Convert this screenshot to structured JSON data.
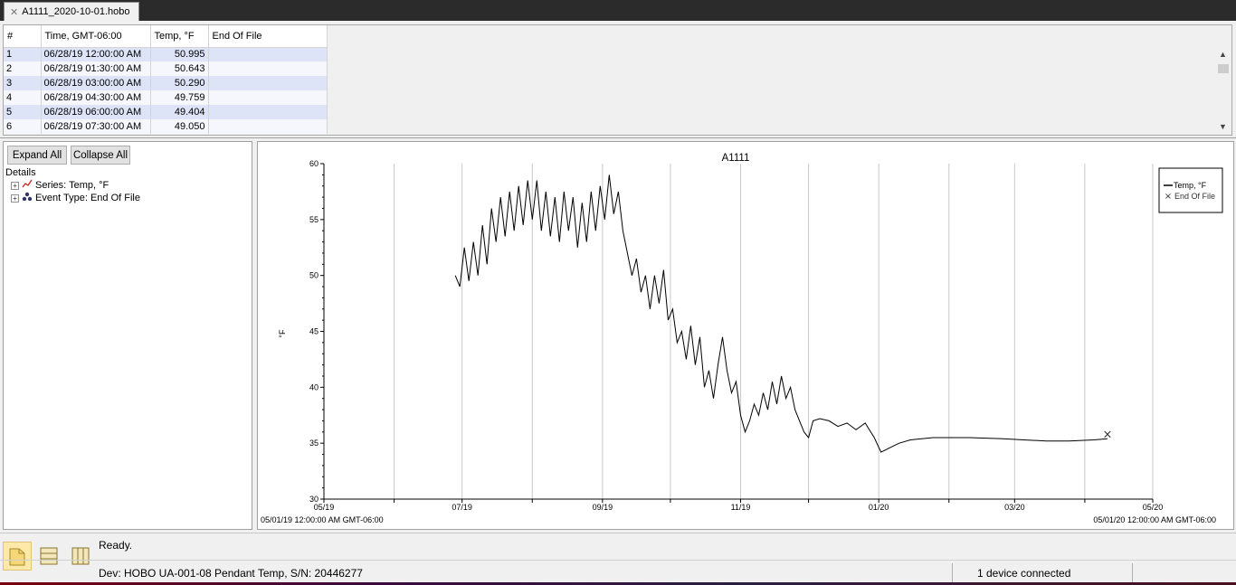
{
  "tab": {
    "title": "A1111_2020-10-01.hobo"
  },
  "table": {
    "columns": [
      "#",
      "Time, GMT-06:00",
      "Temp, °F",
      "End Of File"
    ],
    "rows": [
      [
        "1",
        "06/28/19 12:00:00 AM",
        "50.995",
        ""
      ],
      [
        "2",
        "06/28/19 01:30:00 AM",
        "50.643",
        ""
      ],
      [
        "3",
        "06/28/19 03:00:00 AM",
        "50.290",
        ""
      ],
      [
        "4",
        "06/28/19 04:30:00 AM",
        "49.759",
        ""
      ],
      [
        "5",
        "06/28/19 06:00:00 AM",
        "49.404",
        ""
      ],
      [
        "6",
        "06/28/19 07:30:00 AM",
        "49.050",
        ""
      ]
    ]
  },
  "left": {
    "expand_all": "Expand All",
    "collapse_all": "Collapse All",
    "details": "Details",
    "series_node": "Series: Temp, °F",
    "event_node": "Event Type: End Of File"
  },
  "chart_data": {
    "type": "line",
    "title": "A1111",
    "ylabel": "°F",
    "ylim": [
      30,
      60
    ],
    "yticks": [
      30,
      35,
      40,
      45,
      50,
      55,
      60
    ],
    "xlim": [
      "2019-05-01",
      "2020-05-01"
    ],
    "xticks": [
      {
        "date": "2019-05-01",
        "label": "05/19"
      },
      {
        "date": "2019-06-01",
        "label": ""
      },
      {
        "date": "2019-07-01",
        "label": "07/19"
      },
      {
        "date": "2019-08-01",
        "label": ""
      },
      {
        "date": "2019-09-01",
        "label": "09/19"
      },
      {
        "date": "2019-10-01",
        "label": ""
      },
      {
        "date": "2019-11-01",
        "label": "11/19"
      },
      {
        "date": "2019-12-01",
        "label": ""
      },
      {
        "date": "2020-01-01",
        "label": "01/20"
      },
      {
        "date": "2020-02-01",
        "label": ""
      },
      {
        "date": "2020-03-01",
        "label": "03/20"
      },
      {
        "date": "2020-04-01",
        "label": ""
      },
      {
        "date": "2020-05-01",
        "label": "05/20"
      }
    ],
    "x_start_label": "05/01/19 12:00:00 AM GMT-06:00",
    "x_end_label": "05/01/20 12:00:00 AM GMT-06:00",
    "legend": {
      "placement": "top-right",
      "entries": [
        "Temp, °F",
        "End Of File"
      ]
    },
    "series": [
      {
        "name": "Temp, °F",
        "color": "#000000",
        "approx_points": [
          [
            "2019-06-28",
            50.0
          ],
          [
            "2019-06-30",
            49.0
          ],
          [
            "2019-07-02",
            52.5
          ],
          [
            "2019-07-04",
            49.5
          ],
          [
            "2019-07-06",
            53.0
          ],
          [
            "2019-07-08",
            50.0
          ],
          [
            "2019-07-10",
            54.5
          ],
          [
            "2019-07-12",
            51.0
          ],
          [
            "2019-07-14",
            56.0
          ],
          [
            "2019-07-16",
            53.0
          ],
          [
            "2019-07-18",
            57.0
          ],
          [
            "2019-07-20",
            53.5
          ],
          [
            "2019-07-22",
            57.5
          ],
          [
            "2019-07-24",
            54.0
          ],
          [
            "2019-07-26",
            58.0
          ],
          [
            "2019-07-28",
            54.5
          ],
          [
            "2019-07-30",
            58.5
          ],
          [
            "2019-08-01",
            55.0
          ],
          [
            "2019-08-03",
            58.5
          ],
          [
            "2019-08-05",
            54.0
          ],
          [
            "2019-08-07",
            57.5
          ],
          [
            "2019-08-09",
            53.5
          ],
          [
            "2019-08-11",
            57.0
          ],
          [
            "2019-08-13",
            53.0
          ],
          [
            "2019-08-15",
            57.5
          ],
          [
            "2019-08-17",
            54.0
          ],
          [
            "2019-08-19",
            57.0
          ],
          [
            "2019-08-21",
            52.5
          ],
          [
            "2019-08-23",
            56.5
          ],
          [
            "2019-08-25",
            53.0
          ],
          [
            "2019-08-27",
            57.5
          ],
          [
            "2019-08-29",
            54.0
          ],
          [
            "2019-08-31",
            58.0
          ],
          [
            "2019-09-02",
            55.0
          ],
          [
            "2019-09-04",
            59.0
          ],
          [
            "2019-09-06",
            55.5
          ],
          [
            "2019-09-08",
            57.5
          ],
          [
            "2019-09-10",
            54.0
          ],
          [
            "2019-09-12",
            52.0
          ],
          [
            "2019-09-14",
            50.0
          ],
          [
            "2019-09-16",
            51.5
          ],
          [
            "2019-09-18",
            48.5
          ],
          [
            "2019-09-20",
            50.0
          ],
          [
            "2019-09-22",
            47.0
          ],
          [
            "2019-09-24",
            50.0
          ],
          [
            "2019-09-26",
            47.5
          ],
          [
            "2019-09-28",
            50.5
          ],
          [
            "2019-09-30",
            46.0
          ],
          [
            "2019-10-02",
            47.0
          ],
          [
            "2019-10-04",
            44.0
          ],
          [
            "2019-10-06",
            45.0
          ],
          [
            "2019-10-08",
            42.5
          ],
          [
            "2019-10-10",
            45.5
          ],
          [
            "2019-10-12",
            42.0
          ],
          [
            "2019-10-14",
            44.5
          ],
          [
            "2019-10-16",
            40.0
          ],
          [
            "2019-10-18",
            41.5
          ],
          [
            "2019-10-20",
            39.0
          ],
          [
            "2019-10-22",
            42.0
          ],
          [
            "2019-10-24",
            44.5
          ],
          [
            "2019-10-26",
            41.5
          ],
          [
            "2019-10-28",
            39.5
          ],
          [
            "2019-10-30",
            40.5
          ],
          [
            "2019-11-01",
            37.5
          ],
          [
            "2019-11-03",
            36.0
          ],
          [
            "2019-11-05",
            37.0
          ],
          [
            "2019-11-07",
            38.5
          ],
          [
            "2019-11-09",
            37.5
          ],
          [
            "2019-11-11",
            39.5
          ],
          [
            "2019-11-13",
            38.0
          ],
          [
            "2019-11-15",
            40.5
          ],
          [
            "2019-11-17",
            38.5
          ],
          [
            "2019-11-19",
            41.0
          ],
          [
            "2019-11-21",
            39.0
          ],
          [
            "2019-11-23",
            40.0
          ],
          [
            "2019-11-25",
            38.0
          ],
          [
            "2019-11-27",
            37.0
          ],
          [
            "2019-11-29",
            36.0
          ],
          [
            "2019-12-01",
            35.5
          ],
          [
            "2019-12-03",
            37.0
          ],
          [
            "2019-12-06",
            37.2
          ],
          [
            "2019-12-10",
            37.0
          ],
          [
            "2019-12-14",
            36.5
          ],
          [
            "2019-12-18",
            36.8
          ],
          [
            "2019-12-22",
            36.2
          ],
          [
            "2019-12-26",
            36.8
          ],
          [
            "2019-12-30",
            35.5
          ],
          [
            "2020-01-02",
            34.2
          ],
          [
            "2020-01-06",
            34.6
          ],
          [
            "2020-01-10",
            35.0
          ],
          [
            "2020-01-15",
            35.3
          ],
          [
            "2020-01-25",
            35.5
          ],
          [
            "2020-02-10",
            35.5
          ],
          [
            "2020-02-25",
            35.4
          ],
          [
            "2020-03-05",
            35.3
          ],
          [
            "2020-03-15",
            35.2
          ],
          [
            "2020-03-25",
            35.2
          ],
          [
            "2020-04-05",
            35.3
          ],
          [
            "2020-04-11",
            35.4
          ]
        ]
      }
    ],
    "events": [
      {
        "name": "End Of File",
        "date": "2020-04-11",
        "value": 35.8,
        "marker": "×"
      }
    ]
  },
  "status": {
    "ready": "Ready.",
    "device": "Dev: HOBO UA-001-08 Pendant Temp, S/N: 20446277",
    "connected": "1 device connected"
  },
  "icons": [
    "close-tab-icon",
    "series-line-icon",
    "event-type-icon",
    "details-view-icon",
    "table-view-icon",
    "columns-view-icon"
  ],
  "colors": {
    "row_selected": "#dde4f8",
    "row_alt": "#f5f7fc",
    "active_view": "#ffe9a8"
  }
}
